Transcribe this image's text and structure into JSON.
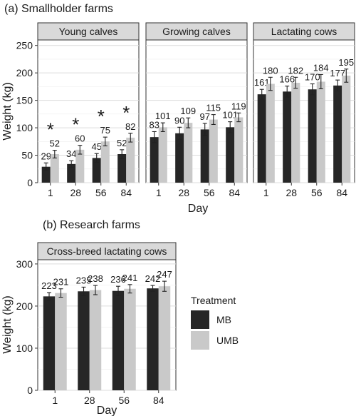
{
  "panel_a_title": "(a) Smallholder farms",
  "panel_b_title": "(b) Research farms",
  "legend": {
    "title": "Treatment",
    "items": [
      {
        "label": "MB",
        "color": "#262626"
      },
      {
        "label": "UMB",
        "color": "#c9c9c9"
      }
    ]
  },
  "colors": {
    "MB": "#262626",
    "UMB": "#c9c9c9"
  },
  "chart_data": [
    {
      "type": "bar",
      "title": "Young calves",
      "xlabel": "Day",
      "ylabel": "Weight (kg)",
      "ylim": [
        0,
        260
      ],
      "yticks": [
        0,
        50,
        100,
        150,
        200,
        250
      ],
      "categories": [
        "1",
        "28",
        "56",
        "84"
      ],
      "series": [
        {
          "name": "MB",
          "values": [
            29,
            34,
            45,
            52
          ],
          "errors": [
            7,
            6,
            8,
            8
          ]
        },
        {
          "name": "UMB",
          "values": [
            52,
            60,
            75,
            82
          ],
          "errors": [
            7,
            8,
            8,
            8
          ]
        }
      ],
      "annotations": [
        "*",
        "*",
        "*",
        "*"
      ],
      "grid": true
    },
    {
      "type": "bar",
      "title": "Growing calves",
      "xlabel": "Day",
      "ylabel": "Weight (kg)",
      "ylim": [
        0,
        260
      ],
      "categories": [
        "1",
        "28",
        "56",
        "84"
      ],
      "series": [
        {
          "name": "MB",
          "values": [
            83,
            90,
            97,
            101
          ],
          "errors": [
            10,
            11,
            11,
            10
          ]
        },
        {
          "name": "UMB",
          "values": [
            101,
            109,
            115,
            119
          ],
          "errors": [
            8,
            9,
            9,
            8
          ]
        }
      ],
      "grid": true
    },
    {
      "type": "bar",
      "title": "Lactating cows",
      "xlabel": "Day",
      "ylabel": "Weight (kg)",
      "ylim": [
        0,
        260
      ],
      "categories": [
        "1",
        "28",
        "56",
        "84"
      ],
      "series": [
        {
          "name": "MB",
          "values": [
            161,
            166,
            170,
            177
          ],
          "errors": [
            9,
            10,
            10,
            10
          ]
        },
        {
          "name": "UMB",
          "values": [
            180,
            182,
            184,
            195
          ],
          "errors": [
            12,
            10,
            13,
            12
          ]
        }
      ],
      "grid": true
    },
    {
      "type": "bar",
      "title": "Cross-breed lactating cows",
      "xlabel": "Day",
      "ylabel": "Weight (kg)",
      "ylim": [
        0,
        310
      ],
      "yticks": [
        0,
        100,
        200,
        300
      ],
      "categories": [
        "1",
        "28",
        "56",
        "84"
      ],
      "series": [
        {
          "name": "MB",
          "values": [
            223,
            235,
            236,
            242
          ],
          "errors": [
            9,
            10,
            11,
            7
          ]
        },
        {
          "name": "UMB",
          "values": [
            231,
            238,
            241,
            247
          ],
          "errors": [
            10,
            11,
            10,
            12
          ]
        }
      ],
      "grid": true
    }
  ]
}
